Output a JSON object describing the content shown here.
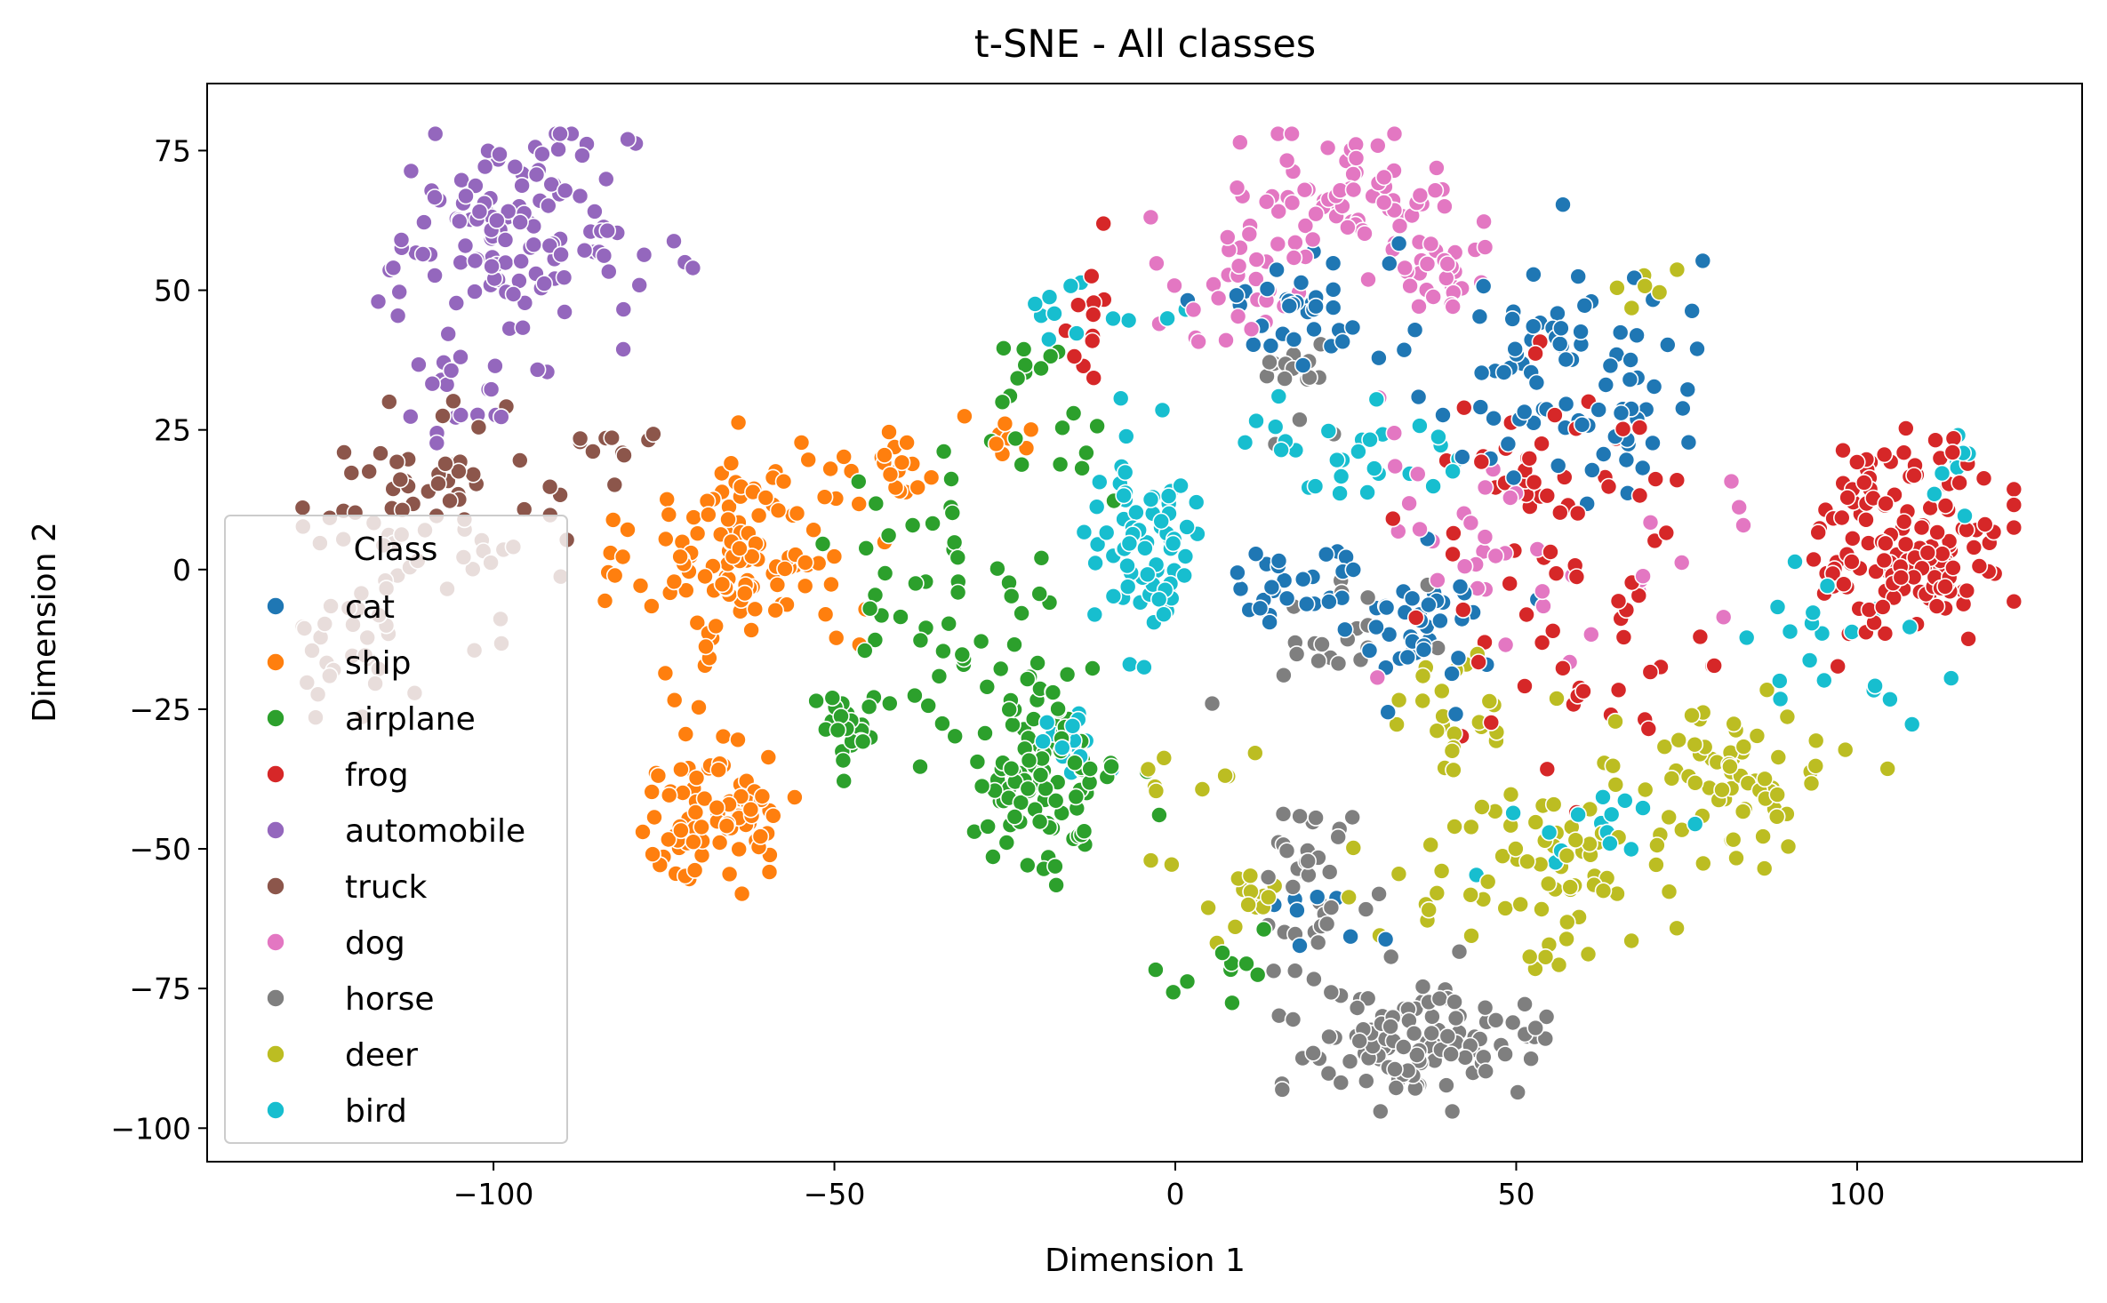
{
  "chart_data": {
    "type": "scatter",
    "title": "t-SNE - All classes",
    "xlabel": "Dimension 1",
    "ylabel": "Dimension 2",
    "xlim": [
      -142,
      133
    ],
    "ylim": [
      -106,
      87
    ],
    "x_ticks": [
      -100,
      -50,
      0,
      50,
      100
    ],
    "y_ticks": [
      75,
      50,
      25,
      0,
      -25,
      -50,
      -75,
      -100
    ],
    "x_tick_labels": [
      "−100",
      "−50",
      "0",
      "50",
      "100"
    ],
    "y_tick_labels": [
      "75",
      "50",
      "25",
      "0",
      "−25",
      "−50",
      "−75",
      "−100"
    ],
    "grid": false,
    "legend": {
      "title": "Class",
      "placement": "lower-left",
      "entries": [
        "cat",
        "ship",
        "airplane",
        "frog",
        "automobile",
        "truck",
        "dog",
        "horse",
        "deer",
        "bird"
      ]
    },
    "series": [
      {
        "name": "cat",
        "color": "#1f77b4",
        "clusters": [
          {
            "cx": 57,
            "cy": 35,
            "sx": 10,
            "sy": 12,
            "n": 90
          },
          {
            "cx": 17,
            "cy": 47,
            "sx": 7,
            "sy": 5,
            "n": 35
          },
          {
            "cx": 37,
            "cy": -10,
            "sx": 5,
            "sy": 6,
            "n": 40
          },
          {
            "cx": 16,
            "cy": -2,
            "sx": 6,
            "sy": 4,
            "n": 30
          },
          {
            "cx": 22,
            "cy": -60,
            "sx": 5,
            "sy": 6,
            "n": 8
          }
        ]
      },
      {
        "name": "ship",
        "color": "#ff7f0e",
        "clusters": [
          {
            "cx": -63,
            "cy": 2,
            "sx": 8,
            "sy": 9,
            "n": 120
          },
          {
            "cx": -67,
            "cy": -43,
            "sx": 6,
            "sy": 7,
            "n": 85
          },
          {
            "cx": -42,
            "cy": 18,
            "sx": 5,
            "sy": 3,
            "n": 20
          },
          {
            "cx": -25,
            "cy": 22,
            "sx": 4,
            "sy": 3,
            "n": 8
          }
        ]
      },
      {
        "name": "airplane",
        "color": "#2ca02c",
        "clusters": [
          {
            "cx": -20,
            "cy": -35,
            "sx": 6,
            "sy": 10,
            "n": 110
          },
          {
            "cx": -48,
            "cy": -28,
            "sx": 3,
            "sy": 3,
            "n": 25
          },
          {
            "cx": -35,
            "cy": 0,
            "sx": 9,
            "sy": 12,
            "n": 45
          },
          {
            "cx": -20,
            "cy": 30,
            "sx": 4,
            "sy": 6,
            "n": 18
          },
          {
            "cx": 6,
            "cy": -72,
            "sx": 5,
            "sy": 3,
            "n": 10
          }
        ]
      },
      {
        "name": "frog",
        "color": "#d62728",
        "clusters": [
          {
            "cx": 108,
            "cy": 5,
            "sx": 7,
            "sy": 9,
            "n": 150
          },
          {
            "cx": 55,
            "cy": 15,
            "sx": 10,
            "sy": 10,
            "n": 50
          },
          {
            "cx": 60,
            "cy": -20,
            "sx": 12,
            "sy": 10,
            "n": 30
          },
          {
            "cx": -12,
            "cy": 45,
            "sx": 4,
            "sy": 6,
            "n": 12
          }
        ]
      },
      {
        "name": "automobile",
        "color": "#9467bd",
        "clusters": [
          {
            "cx": -97,
            "cy": 60,
            "sx": 9,
            "sy": 9,
            "n": 130
          },
          {
            "cx": -105,
            "cy": 30,
            "sx": 5,
            "sy": 6,
            "n": 20
          }
        ]
      },
      {
        "name": "truck",
        "color": "#8c564b",
        "clusters": [
          {
            "cx": -108,
            "cy": 10,
            "sx": 9,
            "sy": 9,
            "n": 75
          },
          {
            "cx": -82,
            "cy": 22,
            "sx": 3,
            "sy": 3,
            "n": 10
          },
          {
            "cx": -122,
            "cy": -15,
            "sx": 5,
            "sy": 8,
            "n": 25
          }
        ]
      },
      {
        "name": "dog",
        "color": "#e377c2",
        "clusters": [
          {
            "cx": 25,
            "cy": 68,
            "sx": 7,
            "sy": 5,
            "n": 60
          },
          {
            "cx": 40,
            "cy": 55,
            "sx": 4,
            "sy": 5,
            "n": 30
          },
          {
            "cx": 10,
            "cy": 52,
            "sx": 7,
            "sy": 7,
            "n": 35
          },
          {
            "cx": 45,
            "cy": 5,
            "sx": 9,
            "sy": 12,
            "n": 30
          },
          {
            "cx": 75,
            "cy": 0,
            "sx": 10,
            "sy": 10,
            "n": 10
          }
        ]
      },
      {
        "name": "horse",
        "color": "#7f7f7f",
        "clusters": [
          {
            "cx": 35,
            "cy": -85,
            "sx": 10,
            "sy": 5,
            "n": 110
          },
          {
            "cx": 20,
            "cy": -55,
            "sx": 4,
            "sy": 8,
            "n": 35
          },
          {
            "cx": 25,
            "cy": -10,
            "sx": 5,
            "sy": 5,
            "n": 20
          },
          {
            "cx": 20,
            "cy": 35,
            "sx": 5,
            "sy": 5,
            "n": 15
          }
        ]
      },
      {
        "name": "deer",
        "color": "#bcbd22",
        "clusters": [
          {
            "cx": 80,
            "cy": -38,
            "sx": 8,
            "sy": 6,
            "n": 70
          },
          {
            "cx": 55,
            "cy": -55,
            "sx": 11,
            "sy": 8,
            "n": 70
          },
          {
            "cx": 40,
            "cy": -25,
            "sx": 6,
            "sy": 6,
            "n": 25
          },
          {
            "cx": 10,
            "cy": -60,
            "sx": 5,
            "sy": 5,
            "n": 15
          },
          {
            "cx": 70,
            "cy": 50,
            "sx": 3,
            "sy": 2,
            "n": 6
          },
          {
            "cx": 0,
            "cy": -35,
            "sx": 5,
            "sy": 5,
            "n": 8
          }
        ]
      },
      {
        "name": "bird",
        "color": "#17becf",
        "clusters": [
          {
            "cx": -5,
            "cy": 5,
            "sx": 5,
            "sy": 10,
            "n": 70
          },
          {
            "cx": 25,
            "cy": 20,
            "sx": 8,
            "sy": 6,
            "n": 30
          },
          {
            "cx": -15,
            "cy": -30,
            "sx": 4,
            "sy": 4,
            "n": 15
          },
          {
            "cx": 95,
            "cy": -15,
            "sx": 8,
            "sy": 8,
            "n": 20
          },
          {
            "cx": 60,
            "cy": -45,
            "sx": 8,
            "sy": 6,
            "n": 15
          },
          {
            "cx": -10,
            "cy": 45,
            "sx": 6,
            "sy": 4,
            "n": 12
          },
          {
            "cx": 115,
            "cy": 15,
            "sx": 3,
            "sy": 5,
            "n": 8
          }
        ]
      }
    ]
  }
}
